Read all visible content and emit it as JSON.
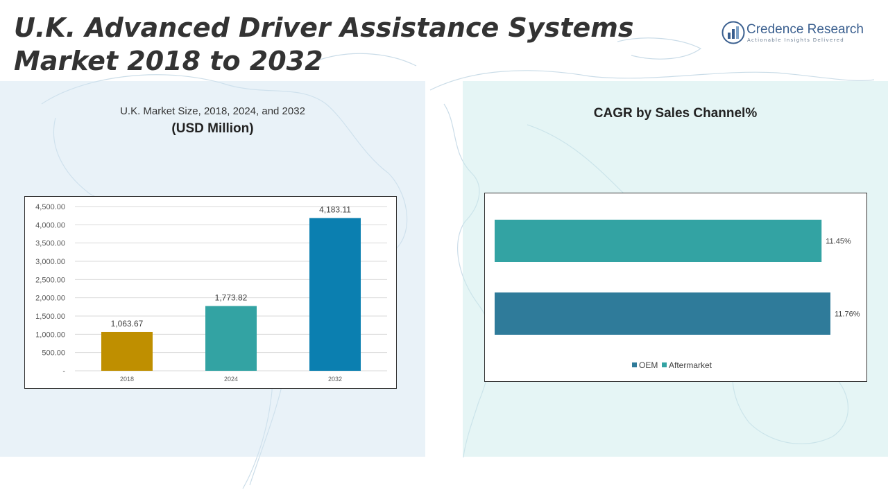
{
  "title": "U.K. Advanced Driver Assistance Systems Market 2018 to 2032",
  "logo": {
    "name": "Credence Research",
    "tagline": "Actionable Insights Delivered",
    "icon": "bar-chart-logo-icon"
  },
  "left_panel": {
    "subtitle": "U.K. Market Size, 2018, 2024, and 2032",
    "units": "(USD Million)"
  },
  "right_panel": {
    "title": "CAGR by Sales Channel%"
  },
  "colors": {
    "bar_2018": "#bf8f00",
    "bar_2024": "#33a3a3",
    "bar_2032": "#0b7fb0",
    "oem": "#2f7b9a",
    "aftermarket": "#33a3a3",
    "left_panel_bg": "#e8f1f8",
    "right_panel_bg": "#e5f5f5"
  },
  "chart_data": [
    {
      "type": "bar",
      "categories": [
        "2018",
        "2024",
        "2032"
      ],
      "values": [
        1063.67,
        1773.82,
        4183.11
      ],
      "value_labels": [
        "1,063.67",
        "1,773.82",
        "4,183.11"
      ],
      "ylim": [
        0,
        4500
      ],
      "y_ticks": [
        0,
        500,
        1000,
        1500,
        2000,
        2500,
        3000,
        3500,
        4000,
        4500
      ],
      "y_tick_labels": [
        "-",
        "500.00",
        "1,000.00",
        "1,500.00",
        "2,000.00",
        "2,500.00",
        "3,000.00",
        "3,500.00",
        "4,000.00",
        "4,500.00"
      ],
      "grid": true
    },
    {
      "type": "bar",
      "orientation": "horizontal",
      "categories": [
        "Aftermarket",
        "OEM"
      ],
      "values": [
        11.45,
        11.76
      ],
      "value_labels": [
        "11.45%",
        "11.76%"
      ],
      "legend": [
        "OEM",
        "Aftermarket"
      ],
      "legend_position": "bottom"
    }
  ]
}
